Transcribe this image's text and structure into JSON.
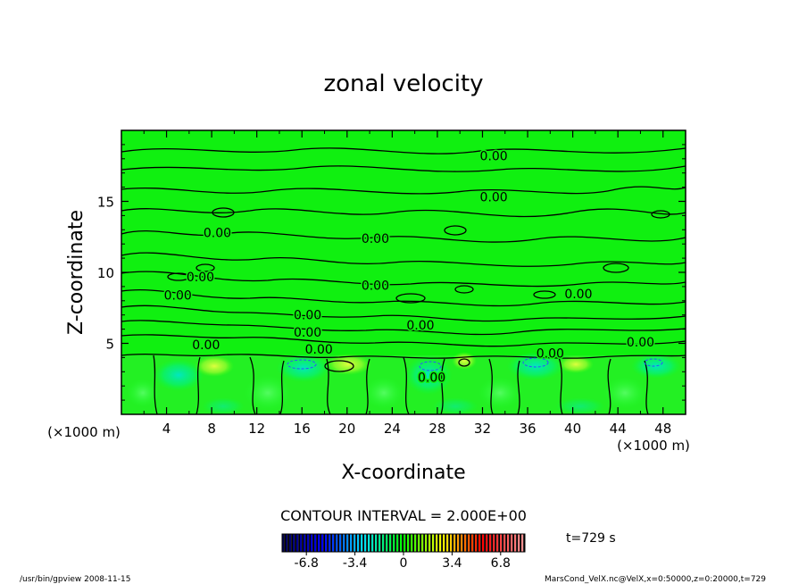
{
  "chart_data": {
    "type": "heatmap",
    "title": "zonal velocity",
    "xlabel": "X-coordinate",
    "ylabel": "Z-coordinate",
    "x_unit_left": "(×1000 m)",
    "x_unit_right": "(×1000 m)",
    "y_unit": "",
    "xlim": [
      0,
      50
    ],
    "ylim": [
      0,
      20
    ],
    "xticks": [
      4,
      8,
      12,
      16,
      20,
      24,
      28,
      32,
      36,
      40,
      44,
      48
    ],
    "yticks": [
      5,
      10,
      15
    ],
    "contour_interval_text": "CONTOUR INTERVAL = 2.000E+00",
    "contour_labels": [
      {
        "text": "0.00",
        "x": 33,
        "z": 18.2
      },
      {
        "text": "0.00",
        "x": 33,
        "z": 15.3
      },
      {
        "text": "0.00",
        "x": 8.5,
        "z": 12.8
      },
      {
        "text": "0.00",
        "x": 22.5,
        "z": 12.4
      },
      {
        "text": "0.00",
        "x": 7,
        "z": 9.7
      },
      {
        "text": "0.00",
        "x": 22.5,
        "z": 9.1
      },
      {
        "text": "0.00",
        "x": 5,
        "z": 8.4
      },
      {
        "text": "0.00",
        "x": 40.5,
        "z": 8.5
      },
      {
        "text": "0.00",
        "x": 16.5,
        "z": 7.0
      },
      {
        "text": "0.00",
        "x": 26.5,
        "z": 6.3
      },
      {
        "text": "0.00",
        "x": 16.5,
        "z": 5.8
      },
      {
        "text": "0.00",
        "x": 7.5,
        "z": 4.9
      },
      {
        "text": "0.00",
        "x": 17.5,
        "z": 4.6
      },
      {
        "text": "0.00",
        "x": 38,
        "z": 4.3
      },
      {
        "text": "0.00",
        "x": 46,
        "z": 5.1
      },
      {
        "text": "0.00",
        "x": 27.5,
        "z": 2.6
      }
    ],
    "colorbar": {
      "ticks": [
        "-6.8",
        "-3.4",
        "0",
        "3.4",
        "6.8"
      ],
      "range": [
        -8.5,
        8.5
      ],
      "colors": [
        "#000050",
        "#0000ff",
        "#00e0ff",
        "#00ff00",
        "#ffff00",
        "#ff0000",
        "#ff9090"
      ]
    }
  },
  "time_label": "t=729 s",
  "footer": {
    "left": "/usr/bin/gpview  2008-11-15",
    "right": "MarsCond_VelX.nc@VelX,x=0:50000,z=0:20000,t=729"
  }
}
